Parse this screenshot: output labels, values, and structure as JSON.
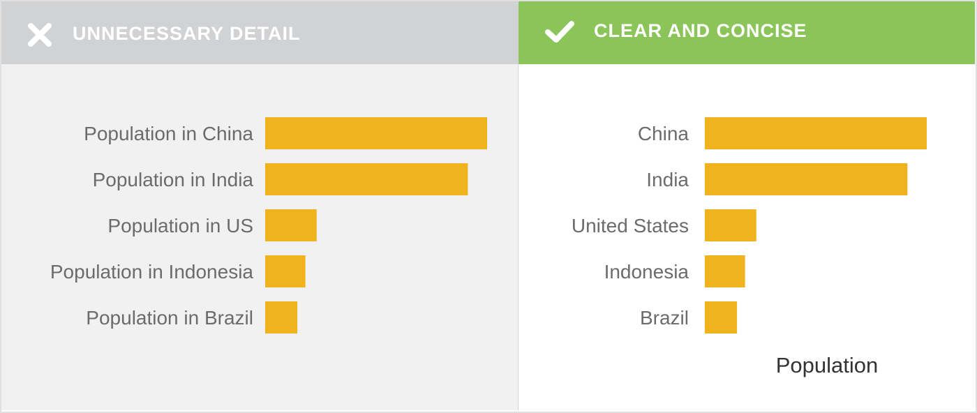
{
  "left_panel": {
    "heading": "UNNECESSARY DETAIL",
    "icon": "x-mark-icon",
    "background": "#f1f1f1",
    "header_color": "#d1d2d4"
  },
  "right_panel": {
    "heading": "CLEAR AND CONCISE",
    "icon": "check-mark-icon",
    "background": "#ffffff",
    "header_color": "#8bc55a"
  },
  "bar_color": "#f0b21d",
  "chart_data": [
    {
      "type": "bar",
      "orientation": "horizontal",
      "categories": [
        "Population in China",
        "Population in India",
        "Population in US",
        "Population in Indonesia",
        "Population in Brazil"
      ],
      "values": [
        1380,
        1260,
        320,
        250,
        200
      ],
      "xlim": [
        0,
        1380
      ],
      "xlabel": "",
      "grid": false,
      "legend": "none"
    },
    {
      "type": "bar",
      "orientation": "horizontal",
      "categories": [
        "China",
        "India",
        "United States",
        "Indonesia",
        "Brazil"
      ],
      "values": [
        1380,
        1260,
        320,
        250,
        200
      ],
      "xlim": [
        0,
        1380
      ],
      "xlabel": "Population",
      "grid": false,
      "legend": "none"
    }
  ]
}
